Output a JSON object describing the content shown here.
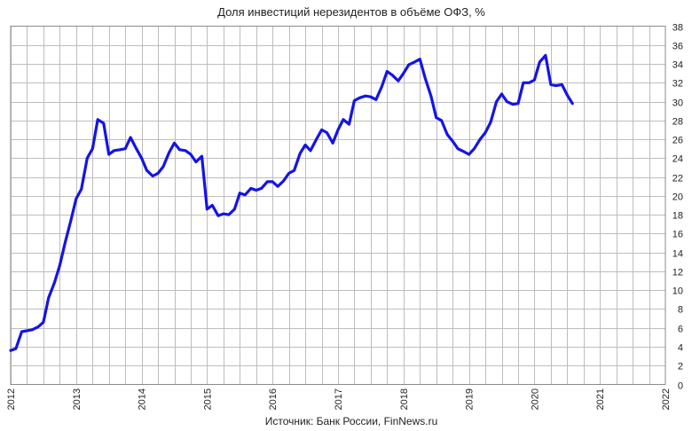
{
  "chart_data": {
    "type": "line",
    "title": "Доля инвестиций нерезидентов в объёме ОФЗ, %",
    "source": "Источник: Банк России, FinNews.ru",
    "xlabel": "",
    "ylabel": "",
    "xlim": [
      2012,
      2022
    ],
    "ylim": [
      0,
      38
    ],
    "ytick_step": 2,
    "grid": true,
    "legend": "none",
    "x_ticks": [
      "2012",
      "2013",
      "2014",
      "2015",
      "2016",
      "2017",
      "2018",
      "2019",
      "2020",
      "2021",
      "2022"
    ],
    "series": [
      {
        "name": "",
        "color": "#1414e6",
        "points": [
          [
            2012.0,
            3.6
          ],
          [
            2012.08,
            3.8
          ],
          [
            2012.17,
            5.6
          ],
          [
            2012.25,
            5.7
          ],
          [
            2012.33,
            5.8
          ],
          [
            2012.42,
            6.1
          ],
          [
            2012.5,
            6.6
          ],
          [
            2012.58,
            9.2
          ],
          [
            2012.67,
            10.8
          ],
          [
            2012.75,
            12.6
          ],
          [
            2012.83,
            15.0
          ],
          [
            2012.92,
            17.4
          ],
          [
            2013.0,
            19.7
          ],
          [
            2013.08,
            20.7
          ],
          [
            2013.17,
            24.0
          ],
          [
            2013.25,
            25.0
          ],
          [
            2013.33,
            28.1
          ],
          [
            2013.42,
            27.7
          ],
          [
            2013.5,
            24.4
          ],
          [
            2013.58,
            24.8
          ],
          [
            2013.67,
            24.9
          ],
          [
            2013.75,
            25.0
          ],
          [
            2013.83,
            26.2
          ],
          [
            2013.92,
            25.0
          ],
          [
            2014.0,
            24.0
          ],
          [
            2014.08,
            22.7
          ],
          [
            2014.17,
            22.1
          ],
          [
            2014.25,
            22.4
          ],
          [
            2014.33,
            23.1
          ],
          [
            2014.42,
            24.6
          ],
          [
            2014.5,
            25.6
          ],
          [
            2014.58,
            24.9
          ],
          [
            2014.67,
            24.8
          ],
          [
            2014.75,
            24.4
          ],
          [
            2014.83,
            23.6
          ],
          [
            2014.92,
            24.2
          ],
          [
            2015.0,
            18.6
          ],
          [
            2015.08,
            19.0
          ],
          [
            2015.17,
            17.9
          ],
          [
            2015.25,
            18.1
          ],
          [
            2015.33,
            18.0
          ],
          [
            2015.42,
            18.6
          ],
          [
            2015.5,
            20.3
          ],
          [
            2015.58,
            20.1
          ],
          [
            2015.67,
            20.8
          ],
          [
            2015.75,
            20.6
          ],
          [
            2015.83,
            20.8
          ],
          [
            2015.92,
            21.5
          ],
          [
            2016.0,
            21.5
          ],
          [
            2016.08,
            21.0
          ],
          [
            2016.17,
            21.6
          ],
          [
            2016.25,
            22.4
          ],
          [
            2016.33,
            22.7
          ],
          [
            2016.42,
            24.5
          ],
          [
            2016.5,
            25.4
          ],
          [
            2016.58,
            24.8
          ],
          [
            2016.67,
            26.0
          ],
          [
            2016.75,
            27.0
          ],
          [
            2016.83,
            26.7
          ],
          [
            2016.92,
            25.6
          ],
          [
            2017.0,
            27.0
          ],
          [
            2017.08,
            28.1
          ],
          [
            2017.17,
            27.6
          ],
          [
            2017.25,
            30.1
          ],
          [
            2017.33,
            30.4
          ],
          [
            2017.42,
            30.6
          ],
          [
            2017.5,
            30.5
          ],
          [
            2017.58,
            30.2
          ],
          [
            2017.67,
            31.6
          ],
          [
            2017.75,
            33.2
          ],
          [
            2017.83,
            32.8
          ],
          [
            2017.92,
            32.2
          ],
          [
            2018.0,
            33.0
          ],
          [
            2018.08,
            33.9
          ],
          [
            2018.17,
            34.2
          ],
          [
            2018.25,
            34.5
          ],
          [
            2018.33,
            32.5
          ],
          [
            2018.42,
            30.6
          ],
          [
            2018.5,
            28.3
          ],
          [
            2018.58,
            28.0
          ],
          [
            2018.67,
            26.5
          ],
          [
            2018.75,
            25.8
          ],
          [
            2018.83,
            25.0
          ],
          [
            2018.92,
            24.7
          ],
          [
            2019.0,
            24.4
          ],
          [
            2019.08,
            25.0
          ],
          [
            2019.17,
            26.0
          ],
          [
            2019.25,
            26.7
          ],
          [
            2019.33,
            27.8
          ],
          [
            2019.42,
            30.0
          ],
          [
            2019.5,
            30.8
          ],
          [
            2019.58,
            30.0
          ],
          [
            2019.67,
            29.7
          ],
          [
            2019.75,
            29.8
          ],
          [
            2019.83,
            32.0
          ],
          [
            2019.92,
            32.0
          ],
          [
            2020.0,
            32.3
          ],
          [
            2020.08,
            34.2
          ],
          [
            2020.17,
            34.9
          ],
          [
            2020.25,
            31.8
          ],
          [
            2020.33,
            31.7
          ],
          [
            2020.42,
            31.8
          ],
          [
            2020.5,
            30.7
          ],
          [
            2020.58,
            29.8
          ]
        ]
      }
    ]
  }
}
